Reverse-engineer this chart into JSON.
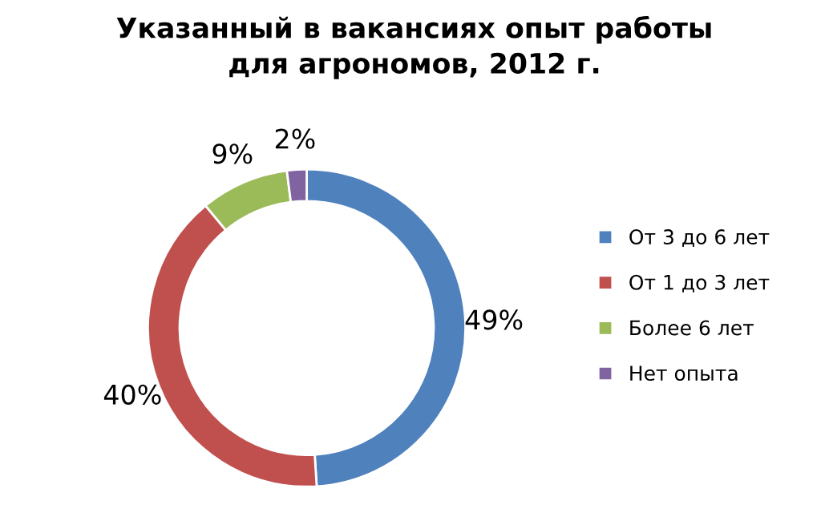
{
  "chart_data": {
    "type": "donut",
    "title": "Указанный в вакансиях опыт работы\nдля агрономов, 2012 г.",
    "categories": [
      "От 3 до 6 лет",
      "От 1 до 3 лет",
      "Более 6 лет",
      "Нет опыта"
    ],
    "values": [
      49,
      40,
      9,
      2
    ],
    "colors": [
      "#4f81bd",
      "#c0504d",
      "#9bbb59",
      "#8064a2"
    ],
    "value_labels": [
      "49%",
      "40%",
      "9%",
      "2%"
    ],
    "legend": "right"
  }
}
